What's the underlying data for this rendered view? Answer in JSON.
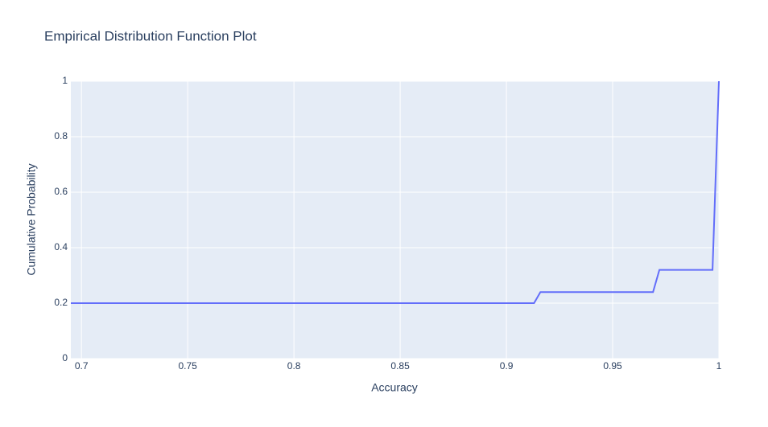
{
  "chart_data": {
    "type": "line",
    "title": "Empirical Distribution Function Plot",
    "x_label": "Accuracy",
    "y_label": "Cumulative Probability",
    "x": [
      0.695,
      0.913,
      0.916,
      0.969,
      0.972,
      0.997,
      1
    ],
    "series": [
      {
        "name": "Accuracy",
        "color": "#636efa",
        "values": [
          0.2,
          0.2,
          0.24,
          0.24,
          0.32,
          0.32,
          1
        ]
      }
    ],
    "xlim": [
      0.695,
      1
    ],
    "xticks": [
      0.7,
      0.75,
      0.8,
      0.85,
      0.9,
      0.95,
      1
    ],
    "ylim": [
      0,
      1
    ],
    "yticks": [
      0,
      0.2,
      0.4,
      0.6,
      0.8,
      1
    ],
    "grid": true
  }
}
